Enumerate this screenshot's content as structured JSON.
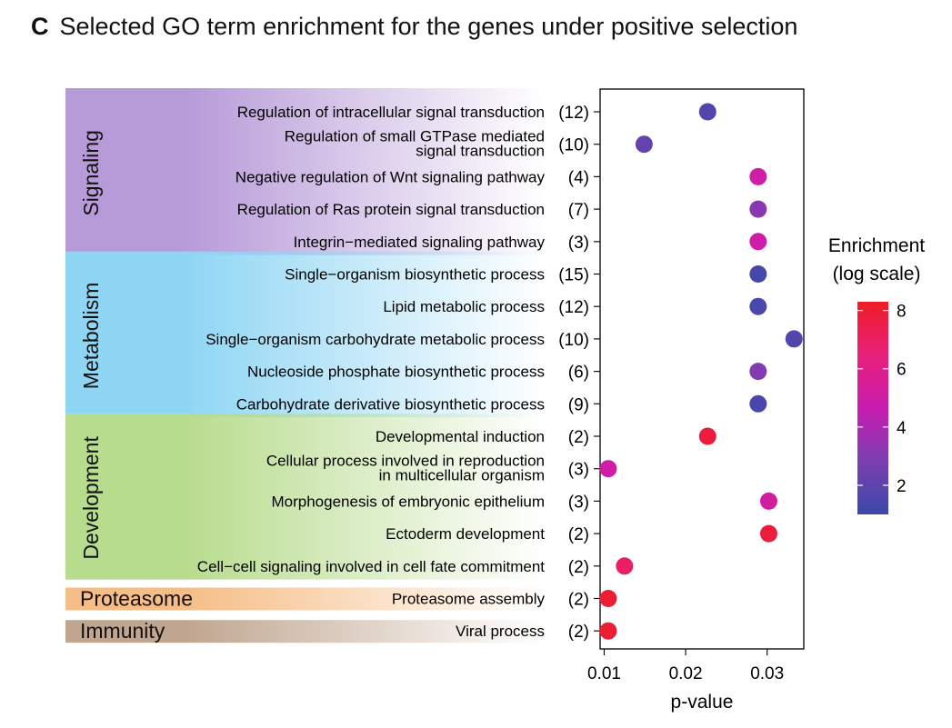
{
  "figure": {
    "panel_letter": "C",
    "title": "Selected GO term enrichment for the genes under positive selection"
  },
  "chart_data": {
    "type": "scatter",
    "xlabel": "p-value",
    "x_ticks": [
      0.01,
      0.02,
      0.03
    ],
    "x_tick_labels": [
      "0.01",
      "0.02",
      "0.03"
    ],
    "xlim": [
      0.0095,
      0.0345
    ],
    "grid": false,
    "legend": {
      "title_line1": "Enrichment",
      "title_line2": "(log scale)",
      "type": "colorbar",
      "range": [
        1,
        8.3
      ],
      "ticks": [
        2,
        4,
        6,
        8
      ],
      "tick_labels": [
        "2",
        "4",
        "6",
        "8"
      ],
      "colors": [
        "#3b4aa8",
        "#7a3fb0",
        "#c81cb0",
        "#e8207a",
        "#ee1c25"
      ],
      "placement": "right"
    },
    "groups": [
      {
        "label": "Signaling",
        "orientation": "vertical",
        "color": "#b79ad8",
        "start": 0,
        "end": 4
      },
      {
        "label": "Metabolism",
        "orientation": "vertical",
        "color": "#8fd6f4",
        "start": 5,
        "end": 9
      },
      {
        "label": "Development",
        "orientation": "vertical",
        "color": "#b8dc8e",
        "start": 10,
        "end": 14
      },
      {
        "label": "Proteasome",
        "orientation": "horizontal",
        "color": "#f6be86",
        "start": 15,
        "end": 15
      },
      {
        "label": "Immunity",
        "orientation": "horizontal",
        "color": "#c0a690",
        "start": 16,
        "end": 16
      }
    ],
    "terms": [
      {
        "lines": [
          "Regulation of intracellular signal transduction"
        ],
        "count": "(12)",
        "pvalue": 0.0227,
        "enrichment": 1.6
      },
      {
        "lines": [
          "Regulation of small GTPase mediated",
          "signal transduction"
        ],
        "count": "(10)",
        "pvalue": 0.0149,
        "enrichment": 2.2
      },
      {
        "lines": [
          "Negative regulation of Wnt signaling pathway"
        ],
        "count": "(4)",
        "pvalue": 0.0289,
        "enrichment": 5.0
      },
      {
        "lines": [
          "Regulation of Ras protein signal transduction"
        ],
        "count": "(7)",
        "pvalue": 0.0289,
        "enrichment": 3.2
      },
      {
        "lines": [
          "Integrin−mediated signaling pathway"
        ],
        "count": "(3)",
        "pvalue": 0.0289,
        "enrichment": 5.0
      },
      {
        "lines": [
          "Single−organism biosynthetic process"
        ],
        "count": "(15)",
        "pvalue": 0.0289,
        "enrichment": 1.3
      },
      {
        "lines": [
          "Lipid metabolic process"
        ],
        "count": "(12)",
        "pvalue": 0.0289,
        "enrichment": 1.5
      },
      {
        "lines": [
          "Single−organism carbohydrate metabolic process"
        ],
        "count": "(10)",
        "pvalue": 0.0333,
        "enrichment": 1.6
      },
      {
        "lines": [
          "Nucleoside phosphate biosynthetic process"
        ],
        "count": "(6)",
        "pvalue": 0.0289,
        "enrichment": 3.0
      },
      {
        "lines": [
          "Carbohydrate derivative biosynthetic process"
        ],
        "count": "(9)",
        "pvalue": 0.0289,
        "enrichment": 1.4
      },
      {
        "lines": [
          "Developmental induction"
        ],
        "count": "(2)",
        "pvalue": 0.0227,
        "enrichment": 7.8
      },
      {
        "lines": [
          "Cellular process involved in reproduction",
          "in multicellular organism"
        ],
        "count": "(3)",
        "pvalue": 0.0105,
        "enrichment": 5.0
      },
      {
        "lines": [
          "Morphogenesis of embryonic epithelium"
        ],
        "count": "(3)",
        "pvalue": 0.0302,
        "enrichment": 5.2
      },
      {
        "lines": [
          "Ectoderm development"
        ],
        "count": "(2)",
        "pvalue": 0.0302,
        "enrichment": 7.8
      },
      {
        "lines": [
          "Cell−cell signaling involved in cell fate commitment"
        ],
        "count": "(2)",
        "pvalue": 0.0125,
        "enrichment": 7.0
      },
      {
        "lines": [
          "Proteasome assembly"
        ],
        "count": "(2)",
        "pvalue": 0.0105,
        "enrichment": 8.0
      },
      {
        "lines": [
          "Viral process"
        ],
        "count": "(2)",
        "pvalue": 0.0105,
        "enrichment": 8.0
      }
    ]
  }
}
